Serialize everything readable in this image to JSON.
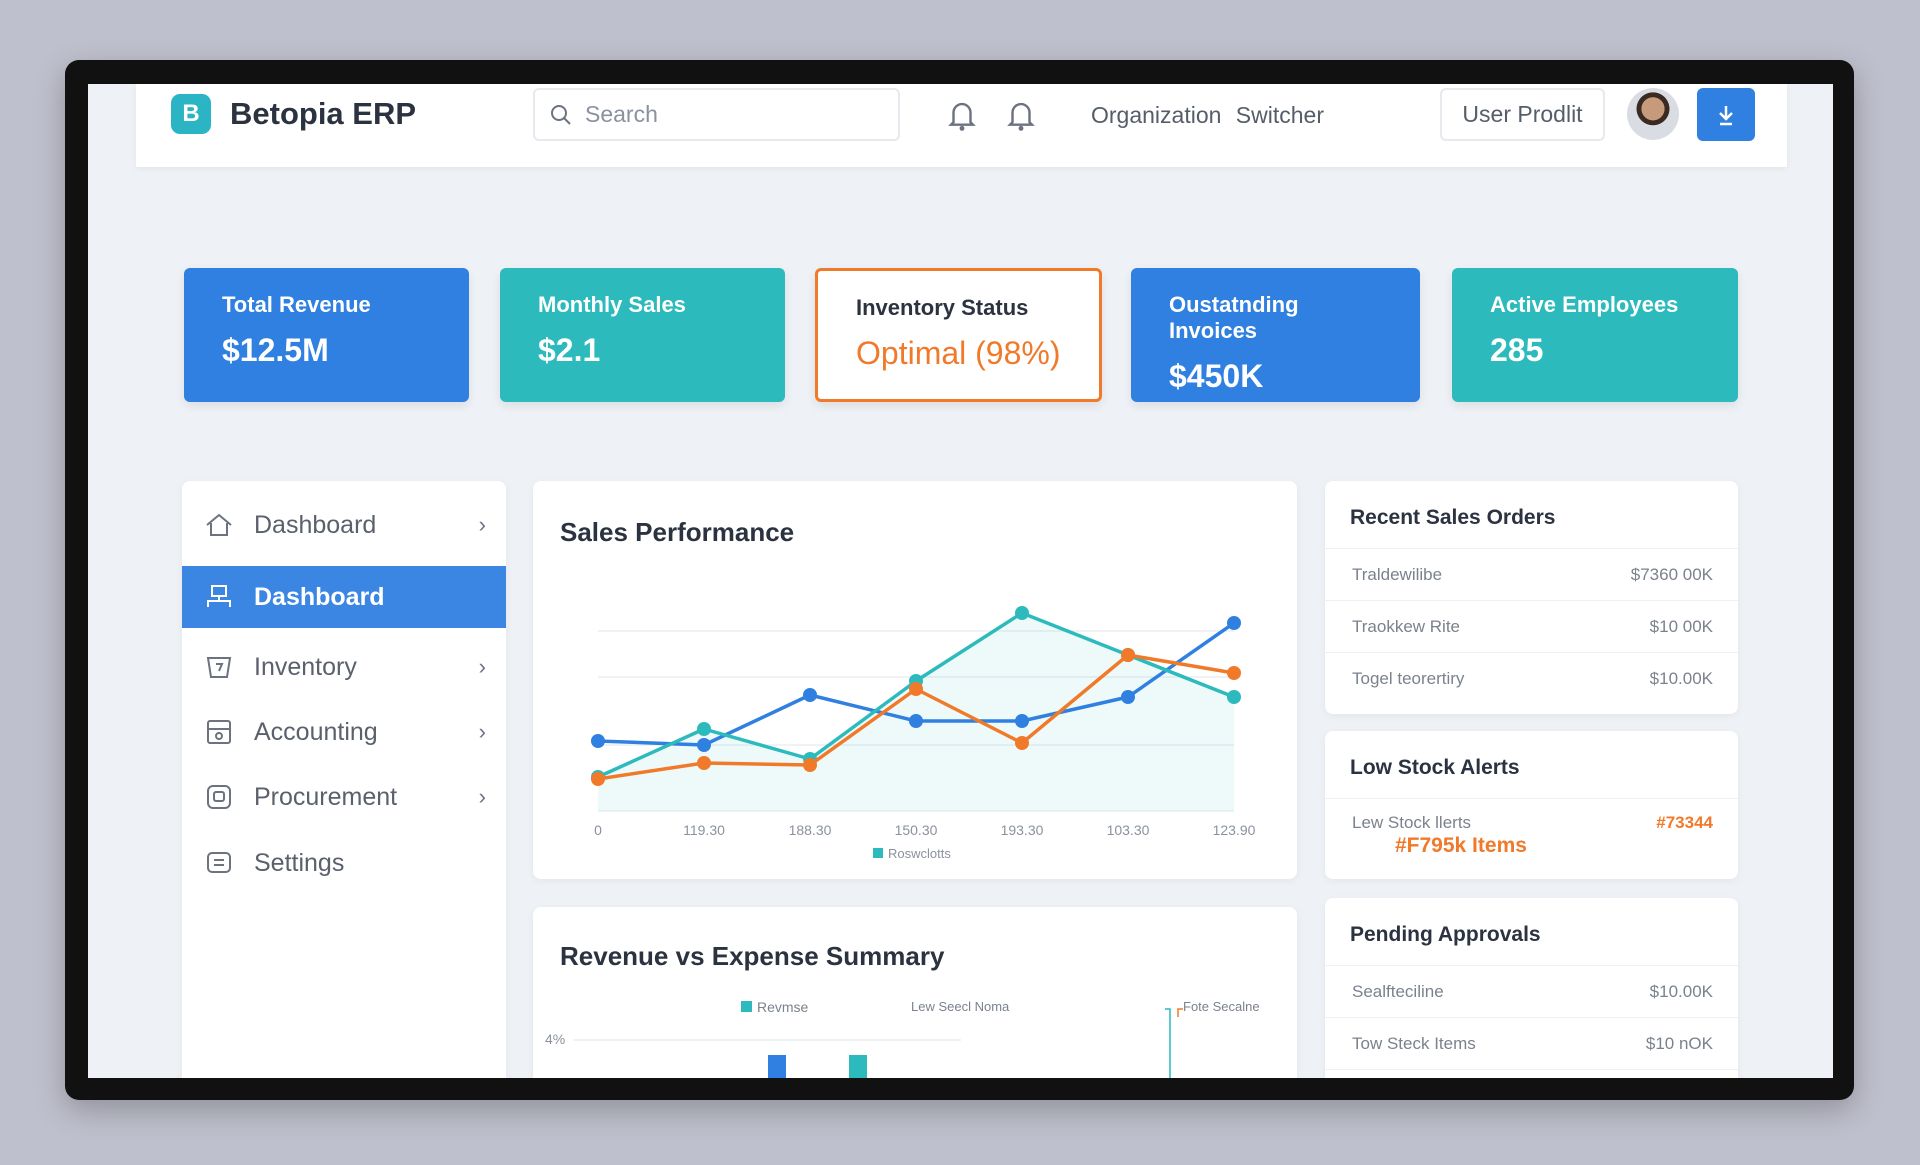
{
  "header": {
    "brand": "Betopia ERP",
    "logo_letter": "B",
    "search_placeholder": "Search",
    "org_switcher": "Organization Switcher",
    "user_profile": "User Prodlit"
  },
  "kpis": [
    {
      "title": "Total Revenue",
      "value": "$12.5M"
    },
    {
      "title": "Monthly Sales",
      "value": "$2.1"
    },
    {
      "title": "Inventory Status",
      "value": "Optimal (98%)"
    },
    {
      "title": "Oustatnding Invoices",
      "value": "$450K"
    },
    {
      "title": "Active Employees",
      "value": "285"
    }
  ],
  "sidebar": {
    "items": [
      {
        "label": "Dashboard",
        "icon": "home-icon"
      },
      {
        "label": "Dashboard",
        "icon": "sitemap-icon",
        "active": true
      },
      {
        "label": "Inventory",
        "icon": "basket-icon"
      },
      {
        "label": "Accounting",
        "icon": "calculator-icon"
      },
      {
        "label": "Procurement",
        "icon": "box-icon"
      },
      {
        "label": "Settings",
        "icon": "settings-icon"
      }
    ]
  },
  "sales": {
    "title": "Sales Performance"
  },
  "revexp": {
    "title": "Revenue vs Expense Summary",
    "legend": "Revmse",
    "ytick": "4%",
    "donut_label_left": "Lew Seecl Noma",
    "donut_label_right": "Fote Secalne"
  },
  "recent_orders": {
    "title": "Recent Sales Orders",
    "rows": [
      {
        "name": "Traldewilibe",
        "amount": "$7360 00K"
      },
      {
        "name": "Traokkew Rite",
        "amount": "$10 00K"
      },
      {
        "name": "Togel teorertiry",
        "amount": "$10.00K"
      }
    ]
  },
  "low_stock": {
    "title": "Low Stock Alerts",
    "row_label": "Lew Stock llerts",
    "row_value": "#73344",
    "highlight": "#F795k Items"
  },
  "approvals": {
    "title": "Pending Approvals",
    "rows": [
      {
        "name": "Sealfteciline",
        "amount": "$10.00K"
      },
      {
        "name": "Tow Steck Items",
        "amount": "$10 nOK"
      }
    ]
  },
  "colors": {
    "blue": "#2f80e0",
    "teal": "#2cbabd",
    "orange": "#f07a2a"
  },
  "chart_data": [
    {
      "type": "line",
      "title": "Sales Performance",
      "categories": [
        "0",
        "119.30",
        "188.30",
        "150.30",
        "193.30",
        "103.30",
        "123.90"
      ],
      "ylim": [
        0,
        100
      ],
      "grid": true,
      "legend": [
        "Roswclotts"
      ],
      "legend_placement": "bottom",
      "series": [
        {
          "color": "#2f80e0",
          "values": [
            35,
            33,
            58,
            45,
            45,
            57,
            94
          ]
        },
        {
          "color": "#2cbabd",
          "values": [
            17,
            41,
            26,
            65,
            99,
            78,
            57
          ]
        },
        {
          "color": "#f07a2a",
          "values": [
            16,
            24,
            23,
            61,
            34,
            78,
            69
          ]
        }
      ]
    },
    {
      "type": "bar",
      "title": "Revenue vs Expense Summary",
      "legend": [
        "Revmse"
      ],
      "yticks": [
        "4%"
      ]
    }
  ]
}
